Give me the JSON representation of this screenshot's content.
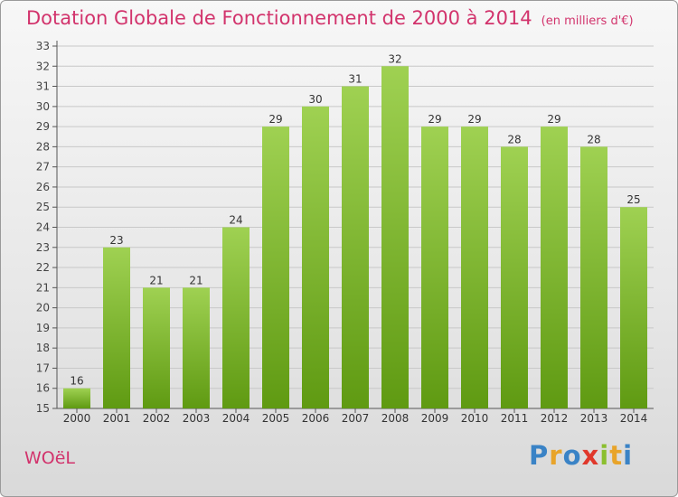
{
  "header": {
    "title": "Dotation Globale de Fonctionnement de 2000 à 2014",
    "unit": "(en milliers d'€)"
  },
  "footer": {
    "commune": "WOëL",
    "brand_letters": [
      "P",
      "r",
      "o",
      "x",
      "i",
      "t",
      "i"
    ],
    "brand_colors": [
      "#3a83c6",
      "#e8a42a",
      "#3a83c6",
      "#e0382b",
      "#8bbf2f",
      "#e8a42a",
      "#3a83c6"
    ]
  },
  "colors": {
    "bar_top": "#9fd152",
    "bar_bottom": "#5f9a12",
    "title": "#d2336c",
    "grid": "#c8c8c8"
  },
  "chart_data": {
    "type": "bar",
    "title": "Dotation Globale de Fonctionnement de 2000 à 2014",
    "subtitle": "(en milliers d'€)",
    "categories": [
      "2000",
      "2001",
      "2002",
      "2003",
      "2004",
      "2005",
      "2006",
      "2007",
      "2008",
      "2009",
      "2010",
      "2011",
      "2012",
      "2013",
      "2014"
    ],
    "values": [
      16,
      23,
      21,
      21,
      24,
      29,
      30,
      31,
      32,
      29,
      29,
      28,
      29,
      28,
      25
    ],
    "ylim": [
      15,
      33
    ],
    "yticks": [
      15,
      16,
      17,
      18,
      19,
      20,
      21,
      22,
      23,
      24,
      25,
      26,
      27,
      28,
      29,
      30,
      31,
      32,
      33
    ],
    "grid": true
  }
}
